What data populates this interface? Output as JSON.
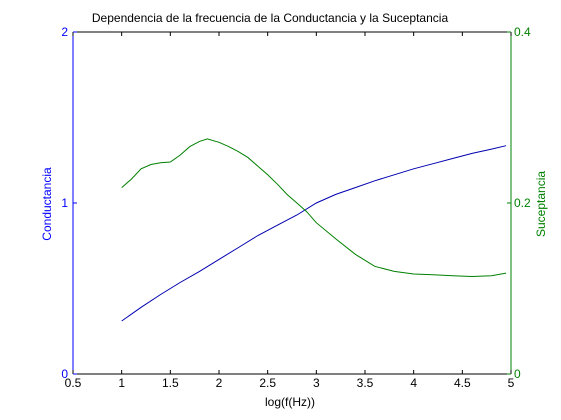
{
  "chart_data": {
    "type": "line",
    "title": "Dependencia de la frecuencia de la Conductancia y la Suceptancia",
    "xlabel": "log(f(Hz))",
    "xlim": [
      0.5,
      5
    ],
    "x_ticks": [
      "0.5",
      "1",
      "1.5",
      "2",
      "2.5",
      "3",
      "3.5",
      "4",
      "4.5",
      "5"
    ],
    "y_left": {
      "label": "Conductancia",
      "lim": [
        0,
        2
      ],
      "ticks": [
        "0",
        "1",
        "2"
      ],
      "color": "#0000ff"
    },
    "y_right": {
      "label": "Suceptancia",
      "lim": [
        0,
        0.4
      ],
      "ticks": [
        "0",
        "0.2",
        "0.4"
      ],
      "color": "#008000"
    },
    "grid": false,
    "series": [
      {
        "axis": "left",
        "color": "#0000b0",
        "x": [
          1.0,
          1.2,
          1.4,
          1.6,
          1.8,
          2.0,
          2.2,
          2.4,
          2.6,
          2.8,
          3.0,
          3.2,
          3.4,
          3.6,
          3.8,
          4.0,
          4.2,
          4.4,
          4.6,
          4.8,
          4.95
        ],
        "y": [
          0.31,
          0.39,
          0.465,
          0.535,
          0.6,
          0.67,
          0.74,
          0.81,
          0.87,
          0.93,
          1.0,
          1.05,
          1.09,
          1.13,
          1.165,
          1.2,
          1.23,
          1.26,
          1.29,
          1.315,
          1.335
        ]
      },
      {
        "axis": "right",
        "color": "#008000",
        "x": [
          1.0,
          1.1,
          1.2,
          1.3,
          1.4,
          1.5,
          1.6,
          1.7,
          1.8,
          1.88,
          2.0,
          2.1,
          2.2,
          2.3,
          2.4,
          2.5,
          2.6,
          2.7,
          2.8,
          2.9,
          3.0,
          3.2,
          3.4,
          3.6,
          3.8,
          4.0,
          4.2,
          4.4,
          4.6,
          4.8,
          4.95
        ],
        "y": [
          0.218,
          0.228,
          0.24,
          0.245,
          0.247,
          0.248,
          0.256,
          0.266,
          0.272,
          0.275,
          0.271,
          0.266,
          0.26,
          0.253,
          0.243,
          0.233,
          0.222,
          0.21,
          0.2,
          0.19,
          0.177,
          0.158,
          0.14,
          0.126,
          0.12,
          0.117,
          0.116,
          0.115,
          0.114,
          0.115,
          0.118
        ]
      }
    ]
  }
}
